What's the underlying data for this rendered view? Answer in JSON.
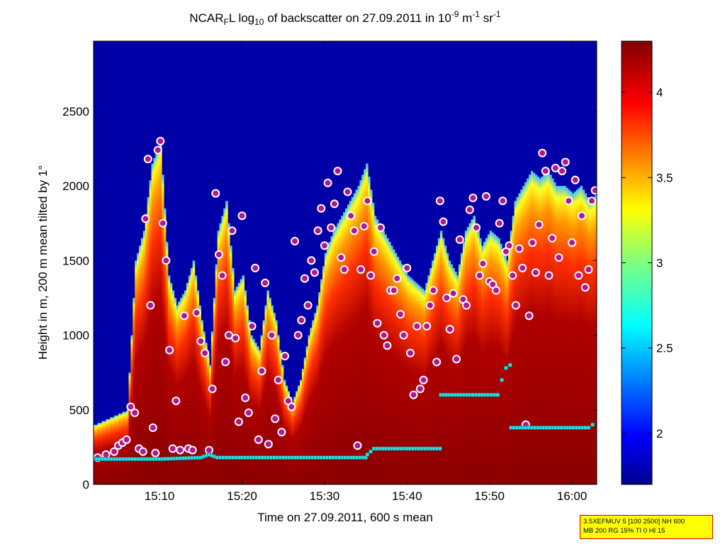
{
  "title": {
    "prefix": "NCAR",
    "sub_f": "F",
    "after_f": "L log",
    "sub_10": "10",
    "middle": " of backscatter on 27.09.2011 in 10",
    "sup_exp1": "-9",
    "unit_m": " m",
    "sup_exp2": "-1",
    "unit_sr": " sr",
    "sup_exp3": "-1"
  },
  "info_box": {
    "line1": "3.5XEFMUV 5 [100 2500] NH 600",
    "line2": "MB 200 RG 15% TI 0 HI 15",
    "background": "#ffff00",
    "border": "#d60000"
  },
  "chart_data": {
    "type": "heatmap",
    "xlabel": "Time on 27.09.2011, 600 s mean",
    "ylabel": "Height in m, 200 m mean tilted by 1°",
    "x_ticks": [
      "15:10",
      "15:20",
      "15:30",
      "15:40",
      "15:50",
      "16:00"
    ],
    "x_tick_minutes": [
      910,
      920,
      930,
      940,
      950,
      960
    ],
    "xlim_minutes": [
      902,
      963
    ],
    "y_ticks": [
      0,
      500,
      1000,
      1500,
      2000,
      2500
    ],
    "ylim": [
      0,
      2970
    ],
    "colorbar": {
      "ticks": [
        2,
        2.5,
        3,
        3.5,
        4
      ],
      "range": [
        1.7,
        4.3
      ],
      "colormap": "jet"
    },
    "aerosol_top_profile": {
      "time_minutes": [
        902,
        904,
        906,
        907,
        908,
        909,
        910,
        911,
        912,
        913,
        914,
        915,
        916,
        917,
        918,
        919,
        920,
        921,
        922,
        923,
        924,
        925,
        926,
        927,
        928,
        929,
        930,
        931,
        932,
        933,
        934,
        935,
        936,
        937,
        938,
        939,
        940,
        941,
        942,
        943,
        944,
        945,
        946,
        947,
        948,
        949,
        950,
        951,
        952,
        953,
        954,
        955,
        956,
        957,
        958,
        959,
        960,
        961,
        962,
        963
      ],
      "height_m": [
        400,
        450,
        500,
        1500,
        1700,
        2150,
        2300,
        1400,
        1200,
        1300,
        1500,
        1100,
        800,
        1700,
        1900,
        1300,
        1400,
        1000,
        900,
        1300,
        1100,
        700,
        550,
        700,
        1000,
        1200,
        1550,
        1700,
        1800,
        1900,
        2000,
        2150,
        1800,
        1700,
        1600,
        1500,
        1400,
        1350,
        1300,
        1500,
        1700,
        1500,
        1400,
        1700,
        1800,
        1600,
        1700,
        1650,
        1500,
        1900,
        2000,
        2100,
        2050,
        2100,
        2000,
        2000,
        1950,
        2000,
        1900,
        1950
      ]
    },
    "layer_markers": {
      "time_minutes": [
        902.5,
        903.5,
        904.5,
        905,
        905.5,
        906,
        906.5,
        907,
        907.5,
        908,
        908.3,
        908.6,
        908.9,
        909.2,
        909.5,
        909.8,
        910.1,
        910.4,
        910.8,
        911.2,
        911.6,
        912,
        912.5,
        913,
        913.5,
        914,
        914.5,
        915,
        915.5,
        916,
        916.4,
        916.8,
        917.2,
        917.6,
        918,
        918.4,
        918.8,
        919.2,
        919.6,
        920,
        920.4,
        920.8,
        921.2,
        921.6,
        922,
        922.4,
        922.8,
        923.2,
        923.6,
        924,
        924.4,
        924.8,
        925.2,
        925.6,
        926,
        926.4,
        926.8,
        927.2,
        927.6,
        928,
        928.4,
        928.8,
        929.2,
        929.6,
        930,
        930.4,
        930.8,
        931.2,
        931.6,
        932,
        932.4,
        932.8,
        933.2,
        933.6,
        934,
        934.4,
        934.8,
        935.2,
        935.6,
        936,
        936.4,
        936.8,
        937.2,
        937.6,
        938,
        938.4,
        938.8,
        939.2,
        939.6,
        940,
        940.4,
        940.8,
        941.2,
        941.6,
        942,
        942.4,
        942.8,
        943.2,
        943.6,
        944,
        944.4,
        944.8,
        945.2,
        945.6,
        946,
        946.4,
        946.8,
        947.2,
        947.6,
        948,
        948.4,
        948.8,
        949.2,
        949.6,
        950,
        950.4,
        950.8,
        951.2,
        951.6,
        952,
        952.4,
        952.8,
        953.2,
        953.6,
        954,
        954.4,
        954.8,
        955.2,
        955.6,
        956,
        956.4,
        956.8,
        957.2,
        957.6,
        958,
        958.4,
        958.8,
        959.2,
        959.6,
        960,
        960.4,
        960.8,
        961.2,
        961.6,
        962,
        962.4,
        962.8
      ],
      "height_m": [
        180,
        200,
        220,
        260,
        280,
        300,
        520,
        480,
        240,
        220,
        1780,
        2180,
        1200,
        380,
        210,
        2240,
        2300,
        1750,
        1500,
        900,
        240,
        560,
        230,
        1130,
        240,
        230,
        1150,
        960,
        880,
        230,
        640,
        1950,
        1540,
        1400,
        820,
        1000,
        1700,
        980,
        420,
        1800,
        580,
        480,
        1060,
        1450,
        300,
        760,
        1350,
        270,
        1000,
        440,
        700,
        350,
        860,
        560,
        520,
        1630,
        1000,
        1100,
        1380,
        1200,
        1500,
        1420,
        1700,
        1850,
        1600,
        2020,
        1720,
        1880,
        2100,
        1520,
        1440,
        1960,
        1800,
        1700,
        260,
        1440,
        1730,
        1900,
        1400,
        1560,
        1080,
        1720,
        1000,
        930,
        1300,
        1300,
        1380,
        1140,
        1000,
        1450,
        880,
        600,
        1060,
        640,
        700,
        1060,
        1200,
        1300,
        820,
        1900,
        1760,
        1250,
        1040,
        1280,
        840,
        1640,
        1240,
        1200,
        1840,
        1920,
        1720,
        1400,
        1480,
        1930,
        1360,
        1340,
        1300,
        1750,
        1900,
        1560,
        1600,
        1400,
        1200,
        1580,
        1450,
        400,
        1130,
        1620,
        1420,
        1740,
        2220,
        2100,
        1400,
        1650,
        2120,
        1520,
        2100,
        2160,
        1900,
        1620,
        2040,
        1400,
        1800,
        1320,
        1440,
        1900,
        1970
      ]
    },
    "boundary_layer_line": {
      "time_minutes": [
        902,
        910,
        915,
        916,
        917,
        920,
        925,
        930,
        935,
        935.2,
        936,
        944,
        944.1,
        948,
        951,
        951.5,
        952,
        952.5,
        952.6,
        962,
        962.5,
        963
      ],
      "height_m": [
        170,
        170,
        180,
        200,
        180,
        180,
        180,
        180,
        180,
        200,
        240,
        240,
        600,
        600,
        600,
        700,
        780,
        800,
        380,
        380,
        400,
        420
      ]
    }
  }
}
